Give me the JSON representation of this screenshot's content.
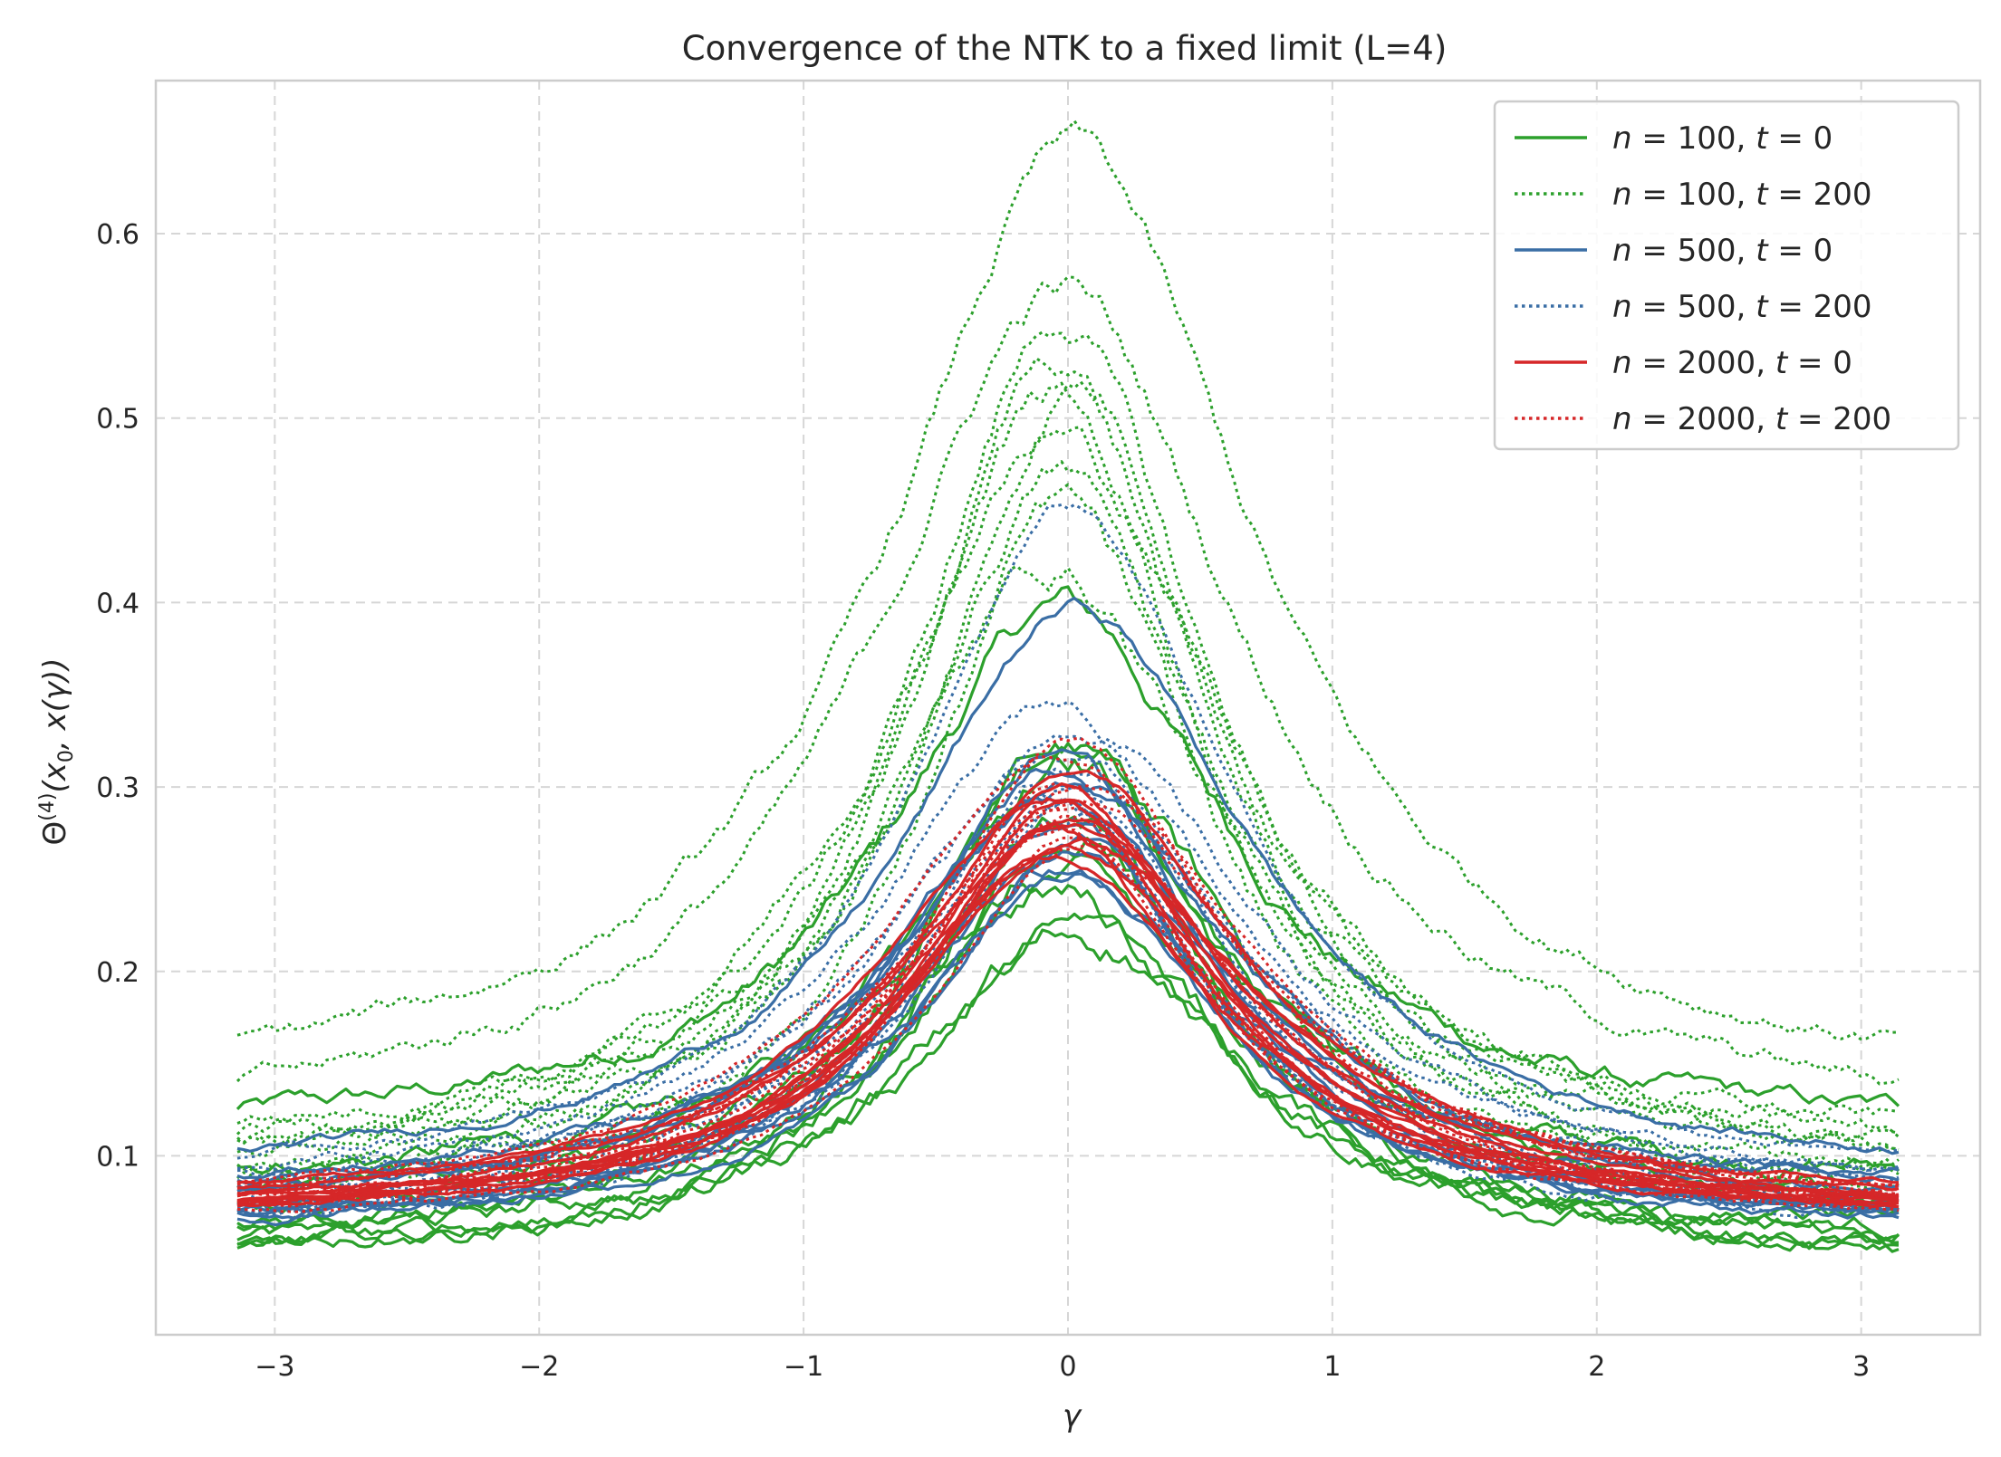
{
  "chart_data": {
    "type": "line",
    "title": "Convergence of the NTK to a fixed limit (L=4)",
    "xlabel": "γ",
    "ylabel_parts": {
      "main": "Θ",
      "sup": "(4)",
      "rest_open": "(x",
      "sub": "0",
      "rest_close": ", x(γ))"
    },
    "xlim": [
      -3.45,
      3.45
    ],
    "ylim": [
      0.003,
      0.683
    ],
    "xticks": [
      -3,
      -2,
      -1,
      0,
      1,
      2,
      3
    ],
    "xtick_labels": [
      "−3",
      "−2",
      "−1",
      "0",
      "1",
      "2",
      "3"
    ],
    "yticks": [
      0.1,
      0.2,
      0.3,
      0.4,
      0.5,
      0.6
    ],
    "ytick_labels": [
      "0.1",
      "0.2",
      "0.3",
      "0.4",
      "0.5",
      "0.6"
    ],
    "grid": true,
    "legend_position": "top-right",
    "x_range_of_curves": [
      -3.1416,
      3.1416
    ],
    "curves_per_series": 10,
    "series": [
      {
        "name": "n = 100,  t = 0",
        "n": "100",
        "t": "0",
        "color": "#2ca02c",
        "style": "solid",
        "peaks": [
          0.397,
          0.33,
          0.32,
          0.31,
          0.29,
          0.25,
          0.24,
          0.22,
          0.22,
          0.28
        ],
        "tails": [
          0.108,
          0.085,
          0.07,
          0.06,
          0.055,
          0.05,
          0.045,
          0.042,
          0.04,
          0.038
        ]
      },
      {
        "name": "n = 100,  t = 200",
        "n": "100",
        "t": "200",
        "color": "#2ca02c",
        "style": "dotted",
        "peaks": [
          0.645,
          0.57,
          0.555,
          0.535,
          0.52,
          0.51,
          0.49,
          0.47,
          0.45,
          0.42
        ],
        "tails": [
          0.13,
          0.11,
          0.1,
          0.095,
          0.09,
          0.085,
          0.08,
          0.075,
          0.07,
          0.065
        ]
      },
      {
        "name": "n = 500,  t = 0",
        "n": "500",
        "t": "0",
        "color": "#3a6ea5",
        "style": "solid",
        "peaks": [
          0.397,
          0.32,
          0.31,
          0.3,
          0.29,
          0.28,
          0.27,
          0.265,
          0.255,
          0.25
        ],
        "tails": [
          0.085,
          0.08,
          0.075,
          0.07,
          0.068,
          0.065,
          0.062,
          0.06,
          0.058,
          0.055
        ]
      },
      {
        "name": "n = 500,  t = 200",
        "n": "500",
        "t": "200",
        "color": "#3a6ea5",
        "style": "dotted",
        "peaks": [
          0.45,
          0.345,
          0.335,
          0.32,
          0.31,
          0.3,
          0.295,
          0.29,
          0.285,
          0.28
        ],
        "tails": [
          0.082,
          0.078,
          0.074,
          0.07,
          0.068,
          0.066,
          0.064,
          0.062,
          0.06,
          0.058
        ]
      },
      {
        "name": "n = 2000,  t = 0",
        "n": "2000",
        "t": "0",
        "color": "#d62728",
        "style": "solid",
        "peaks": [
          0.31,
          0.3,
          0.295,
          0.29,
          0.285,
          0.28,
          0.275,
          0.27,
          0.265,
          0.26
        ],
        "tails": [
          0.072,
          0.07,
          0.068,
          0.067,
          0.066,
          0.065,
          0.064,
          0.063,
          0.062,
          0.061
        ]
      },
      {
        "name": "n = 2000,  t = 200",
        "n": "2000",
        "t": "200",
        "color": "#d62728",
        "style": "dotted",
        "peaks": [
          0.325,
          0.315,
          0.305,
          0.3,
          0.295,
          0.29,
          0.285,
          0.28,
          0.275,
          0.27
        ],
        "tails": [
          0.072,
          0.07,
          0.069,
          0.068,
          0.067,
          0.066,
          0.065,
          0.064,
          0.063,
          0.062
        ]
      }
    ]
  }
}
